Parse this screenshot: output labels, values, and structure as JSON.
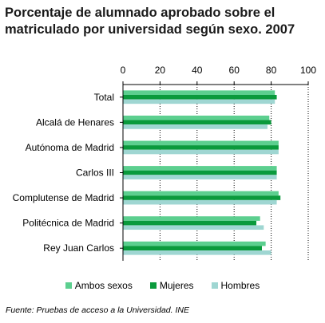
{
  "chart_data": {
    "type": "bar",
    "orientation": "horizontal",
    "title": "Porcentaje de alumnado aprobado sobre el matriculado por universidad según sexo. 2007",
    "categories": [
      "Total",
      "Alcalá de Henares",
      "Autónoma de Madrid",
      "Carlos III",
      "Complutense de Madrid",
      "Politécnica de Madrid",
      "Rey Juan Carlos"
    ],
    "series": [
      {
        "name": "Ambos sexos",
        "color": "#5ccf8f",
        "values": [
          82,
          79,
          84,
          83,
          84,
          74,
          77
        ]
      },
      {
        "name": "Mujeres",
        "color": "#0a9a3c",
        "values": [
          83,
          80,
          84,
          83,
          85,
          72,
          75
        ]
      },
      {
        "name": "Hombres",
        "color": "#9fd6d2",
        "values": [
          82,
          78,
          84,
          83,
          83,
          76,
          80
        ]
      }
    ],
    "xlim": [
      0,
      100
    ],
    "xticks": [
      "0",
      "20",
      "40",
      "60",
      "80",
      "100"
    ],
    "xlabel": "",
    "ylabel": "",
    "grid": true,
    "legend_position": "bottom"
  },
  "footer": {
    "source": "Fuente: Pruebas de acceso a la Universidad. INE"
  }
}
